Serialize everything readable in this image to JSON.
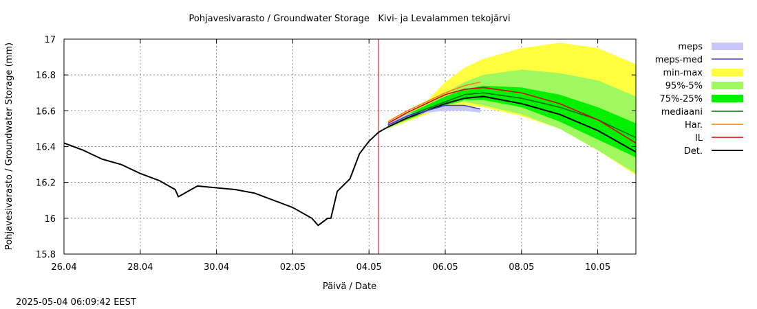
{
  "chart_data": {
    "type": "line",
    "title": "Pohjavesivarasto / Groundwater Storage   Kivi- ja Levalammen tekojärvi",
    "xlabel": "Päivä / Date",
    "ylabel": "Pohjavesivarasto / Groundwater Storage (mm)",
    "timestamp": "2025-05-04 06:09:42 EEST",
    "x_ticks": [
      "26.04",
      "28.04",
      "30.04",
      "02.05",
      "04.05",
      "06.05",
      "08.05",
      "10.05"
    ],
    "x_range": [
      "2025-04-26 00:00",
      "2025-05-11 00:00"
    ],
    "y_ticks": [
      "15.8",
      "16",
      "16.2",
      "16.4",
      "16.6",
      "16.8",
      "17"
    ],
    "ylim": [
      15.8,
      17.0
    ],
    "grid": true,
    "legend_position": "right",
    "forecast_start": "2025-05-04 06:00",
    "legend": [
      {
        "label": "meps",
        "kind": "band",
        "color": "#c8c8f8"
      },
      {
        "label": "meps-med",
        "kind": "line",
        "color": "#4040c0"
      },
      {
        "label": "min-max",
        "kind": "band",
        "color": "#ffff40"
      },
      {
        "label": "95%-5%",
        "kind": "band",
        "color": "#a0f860"
      },
      {
        "label": "75%-25%",
        "kind": "band",
        "color": "#00f000"
      },
      {
        "label": "mediaani",
        "kind": "line",
        "color": "#007000"
      },
      {
        "label": "Har.",
        "kind": "line",
        "color": "#ff8000"
      },
      {
        "label": "IL",
        "kind": "line",
        "color": "#e00000"
      },
      {
        "label": "Det.",
        "kind": "line",
        "color": "#000000"
      }
    ],
    "observed": {
      "name": "Det.",
      "x": [
        "2025-04-26 00:00",
        "2025-04-26 12:00",
        "2025-04-27 00:00",
        "2025-04-27 12:00",
        "2025-04-28 00:00",
        "2025-04-28 12:00",
        "2025-04-28 22:00",
        "2025-04-29 00:00",
        "2025-04-29 12:00",
        "2025-04-30 00:00",
        "2025-04-30 12:00",
        "2025-05-01 00:00",
        "2025-05-01 12:00",
        "2025-05-02 00:00",
        "2025-05-02 12:00",
        "2025-05-02 16:00",
        "2025-05-02 22:00",
        "2025-05-03 00:00",
        "2025-05-03 04:00",
        "2025-05-03 12:00",
        "2025-05-03 18:00",
        "2025-05-04 00:00",
        "2025-05-04 06:00",
        "2025-05-04 12:00"
      ],
      "y": [
        16.42,
        16.38,
        16.33,
        16.3,
        16.25,
        16.21,
        16.16,
        16.12,
        16.18,
        16.17,
        16.16,
        16.14,
        16.1,
        16.06,
        16.0,
        15.96,
        16.0,
        16.0,
        16.15,
        16.22,
        16.36,
        16.43,
        16.48,
        16.51
      ]
    },
    "series": [
      {
        "name": "Det.",
        "x": [
          "2025-05-04 12:00",
          "2025-05-05 00:00",
          "2025-05-05 12:00",
          "2025-05-06 00:00",
          "2025-05-06 12:00",
          "2025-05-07 00:00",
          "2025-05-08 00:00",
          "2025-05-09 00:00",
          "2025-05-10 00:00",
          "2025-05-11 00:00"
        ],
        "values": [
          16.51,
          16.56,
          16.6,
          16.64,
          16.67,
          16.68,
          16.64,
          16.58,
          16.49,
          16.37
        ]
      },
      {
        "name": "mediaani",
        "x": [
          "2025-05-04 12:00",
          "2025-05-05 00:00",
          "2025-05-05 12:00",
          "2025-05-06 00:00",
          "2025-05-06 12:00",
          "2025-05-07 00:00",
          "2025-05-08 00:00",
          "2025-05-09 00:00",
          "2025-05-10 00:00",
          "2025-05-11 00:00"
        ],
        "values": [
          16.52,
          16.57,
          16.61,
          16.65,
          16.69,
          16.7,
          16.67,
          16.62,
          16.55,
          16.45
        ]
      },
      {
        "name": "IL",
        "x": [
          "2025-05-04 12:00",
          "2025-05-05 00:00",
          "2025-05-05 12:00",
          "2025-05-06 00:00",
          "2025-05-06 12:00",
          "2025-05-07 00:00",
          "2025-05-08 00:00",
          "2025-05-09 00:00",
          "2025-05-10 00:00",
          "2025-05-11 00:00"
        ],
        "values": [
          16.53,
          16.59,
          16.64,
          16.69,
          16.72,
          16.73,
          16.7,
          16.64,
          16.55,
          16.42
        ]
      },
      {
        "name": "Har.",
        "x": [
          "2025-05-04 12:00",
          "2025-05-05 00:00",
          "2025-05-05 12:00",
          "2025-05-06 00:00",
          "2025-05-06 12:00",
          "2025-05-06 22:00"
        ],
        "values": [
          16.54,
          16.6,
          16.65,
          16.7,
          16.74,
          16.76
        ]
      },
      {
        "name": "meps-med",
        "x": [
          "2025-05-04 12:00",
          "2025-05-05 00:00",
          "2025-05-05 12:00",
          "2025-05-06 00:00",
          "2025-05-06 12:00",
          "2025-05-06 22:00"
        ],
        "values": [
          16.52,
          16.57,
          16.6,
          16.63,
          16.63,
          16.61
        ]
      }
    ],
    "bands": [
      {
        "name": "min-max",
        "x": [
          "2025-05-04 12:00",
          "2025-05-05 00:00",
          "2025-05-05 12:00",
          "2025-05-06 00:00",
          "2025-05-06 12:00",
          "2025-05-07 00:00",
          "2025-05-08 00:00",
          "2025-05-09 00:00",
          "2025-05-10 00:00",
          "2025-05-11 00:00"
        ],
        "upper": [
          16.53,
          16.59,
          16.65,
          16.76,
          16.84,
          16.89,
          16.95,
          16.98,
          16.95,
          16.86
        ],
        "lower": [
          16.5,
          16.54,
          16.58,
          16.62,
          16.63,
          16.62,
          16.57,
          16.5,
          16.38,
          16.24
        ]
      },
      {
        "name": "95%-5%",
        "x": [
          "2025-05-04 12:00",
          "2025-05-05 00:00",
          "2025-05-05 12:00",
          "2025-05-06 00:00",
          "2025-05-06 12:00",
          "2025-05-07 00:00",
          "2025-05-08 00:00",
          "2025-05-09 00:00",
          "2025-05-10 00:00",
          "2025-05-11 00:00"
        ],
        "upper": [
          16.53,
          16.59,
          16.64,
          16.7,
          16.76,
          16.8,
          16.83,
          16.81,
          16.77,
          16.68
        ],
        "lower": [
          16.5,
          16.55,
          16.59,
          16.63,
          16.65,
          16.63,
          16.58,
          16.5,
          16.38,
          16.25
        ]
      },
      {
        "name": "75%-25%",
        "x": [
          "2025-05-04 12:00",
          "2025-05-05 00:00",
          "2025-05-05 12:00",
          "2025-05-06 00:00",
          "2025-05-06 12:00",
          "2025-05-07 00:00",
          "2025-05-08 00:00",
          "2025-05-09 00:00",
          "2025-05-10 00:00",
          "2025-05-11 00:00"
        ],
        "upper": [
          16.53,
          16.58,
          16.63,
          16.68,
          16.72,
          16.74,
          16.73,
          16.69,
          16.62,
          16.53
        ],
        "lower": [
          16.51,
          16.55,
          16.59,
          16.63,
          16.66,
          16.66,
          16.62,
          16.54,
          16.44,
          16.34
        ]
      },
      {
        "name": "meps",
        "x": [
          "2025-05-04 12:00",
          "2025-05-05 00:00",
          "2025-05-05 12:00",
          "2025-05-06 00:00",
          "2025-05-06 12:00",
          "2025-05-06 22:00"
        ],
        "upper": [
          16.53,
          16.58,
          16.61,
          16.63,
          16.63,
          16.61
        ],
        "lower": [
          16.51,
          16.56,
          16.59,
          16.6,
          16.6,
          16.59
        ]
      }
    ]
  }
}
